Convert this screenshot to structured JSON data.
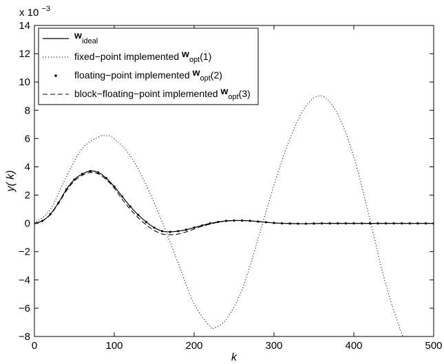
{
  "chart_data": {
    "type": "line",
    "title": "",
    "xlabel": "k",
    "ylabel": "y( k)",
    "xlim": [
      0,
      500
    ],
    "ylim": [
      -0.008,
      0.014
    ],
    "y_multiplier_label": "x 10",
    "y_multiplier_exponent": "−3",
    "grid": false,
    "legend_position": "top-left",
    "x_ticks": [
      "0",
      "100",
      "200",
      "300",
      "400",
      "500"
    ],
    "y_ticks": [
      "−8",
      "−6",
      "−4",
      "−2",
      "0",
      "2",
      "4",
      "6",
      "8",
      "10",
      "12",
      "14"
    ],
    "series": [
      {
        "legend": {
          "bold": "w",
          "sub": "ideal",
          "text": "",
          "suffix": ""
        },
        "style": "solid",
        "x": [
          0,
          10,
          20,
          30,
          40,
          50,
          60,
          70,
          80,
          90,
          100,
          110,
          120,
          130,
          140,
          150,
          160,
          170,
          180,
          190,
          200,
          210,
          220,
          230,
          240,
          250,
          260,
          270,
          280,
          290,
          300,
          320,
          340,
          360,
          380,
          400,
          420,
          440,
          460,
          480,
          500
        ],
        "y": [
          0,
          0.00018,
          0.00065,
          0.00145,
          0.0024,
          0.0031,
          0.0035,
          0.0037,
          0.0036,
          0.0032,
          0.0026,
          0.0019,
          0.0012,
          0.0006,
          0.0001,
          -0.0003,
          -0.00055,
          -0.0006,
          -0.00055,
          -0.00045,
          -0.0003,
          -0.00015,
          0,
          0.0001,
          0.00018,
          0.0002,
          0.0002,
          0.00018,
          0.00013,
          8e-05,
          3e-05,
          -1e-05,
          -2e-05,
          0,
          0,
          0,
          0,
          0,
          0,
          0,
          0
        ]
      },
      {
        "legend": {
          "bold": "w",
          "sub": "opt",
          "text": "fixed−point implemented ",
          "suffix": "(1)"
        },
        "style": "dotted",
        "x": [
          0,
          20,
          40,
          60,
          80,
          90,
          100,
          120,
          140,
          160,
          180,
          200,
          220,
          225,
          240,
          260,
          280,
          300,
          320,
          340,
          360,
          380,
          400,
          420,
          440,
          460,
          465
        ],
        "y": [
          0,
          0.001,
          0.0033,
          0.0053,
          0.0061,
          0.0062,
          0.006,
          0.0048,
          0.0027,
          0.0001,
          -0.0028,
          -0.0057,
          -0.0073,
          -0.0074,
          -0.0068,
          -0.0047,
          -0.0011,
          0.0027,
          0.006,
          0.0083,
          0.009,
          0.0077,
          0.0047,
          0.0003,
          -0.0043,
          -0.0078,
          -0.0081
        ]
      },
      {
        "legend": {
          "bold": "w",
          "sub": "opt",
          "text": "floating−point implemented ",
          "suffix": "(2)"
        },
        "style": "points",
        "x": [
          0,
          10,
          20,
          30,
          40,
          50,
          60,
          70,
          80,
          90,
          100,
          110,
          120,
          130,
          140,
          150,
          160,
          170,
          180,
          190,
          200,
          210,
          220,
          230,
          240,
          250,
          260,
          270,
          280,
          290,
          300,
          310,
          320,
          330,
          340,
          350,
          360,
          370,
          380,
          390,
          400,
          410,
          420,
          430,
          440,
          450,
          460,
          470,
          480,
          490,
          500
        ],
        "y": [
          0,
          0.00018,
          0.00065,
          0.00145,
          0.0024,
          0.0031,
          0.0035,
          0.0037,
          0.0036,
          0.0032,
          0.0026,
          0.0019,
          0.0012,
          0.0006,
          0.0001,
          -0.0003,
          -0.00055,
          -0.0006,
          -0.00055,
          -0.00045,
          -0.0003,
          -0.00015,
          0,
          0.0001,
          0.00018,
          0.0002,
          0.0002,
          0.00018,
          0.00013,
          8e-05,
          3e-05,
          0,
          -1e-05,
          -2e-05,
          -2e-05,
          -1e-05,
          0,
          0,
          0,
          0,
          0,
          0,
          0,
          0,
          0,
          0,
          0,
          0,
          0,
          0,
          0
        ]
      },
      {
        "legend": {
          "bold": "w",
          "sub": "opt",
          "text": "block−floating−point implemented ",
          "suffix": "(3)"
        },
        "style": "dashed",
        "x": [
          0,
          10,
          20,
          30,
          40,
          50,
          60,
          70,
          80,
          90,
          100,
          110,
          120,
          130,
          140,
          150,
          160,
          170,
          180,
          190,
          200,
          210,
          220,
          230,
          240,
          250,
          260,
          270,
          280,
          290,
          300,
          320,
          340,
          360,
          380,
          400,
          420,
          440,
          460,
          480,
          500
        ],
        "y": [
          0,
          0.00017,
          0.00062,
          0.0014,
          0.0023,
          0.003,
          0.0034,
          0.0036,
          0.0035,
          0.0031,
          0.0025,
          0.0017,
          0.001,
          0.0004,
          -0.0001,
          -0.0005,
          -0.00075,
          -0.0008,
          -0.00075,
          -0.0006,
          -0.0004,
          -0.0002,
          -5e-05,
          8e-05,
          0.00016,
          0.0002,
          0.0002,
          0.00018,
          0.00013,
          8e-05,
          3e-05,
          -1e-05,
          -2e-05,
          0,
          0,
          0,
          0,
          0,
          0,
          0,
          0
        ]
      }
    ]
  }
}
